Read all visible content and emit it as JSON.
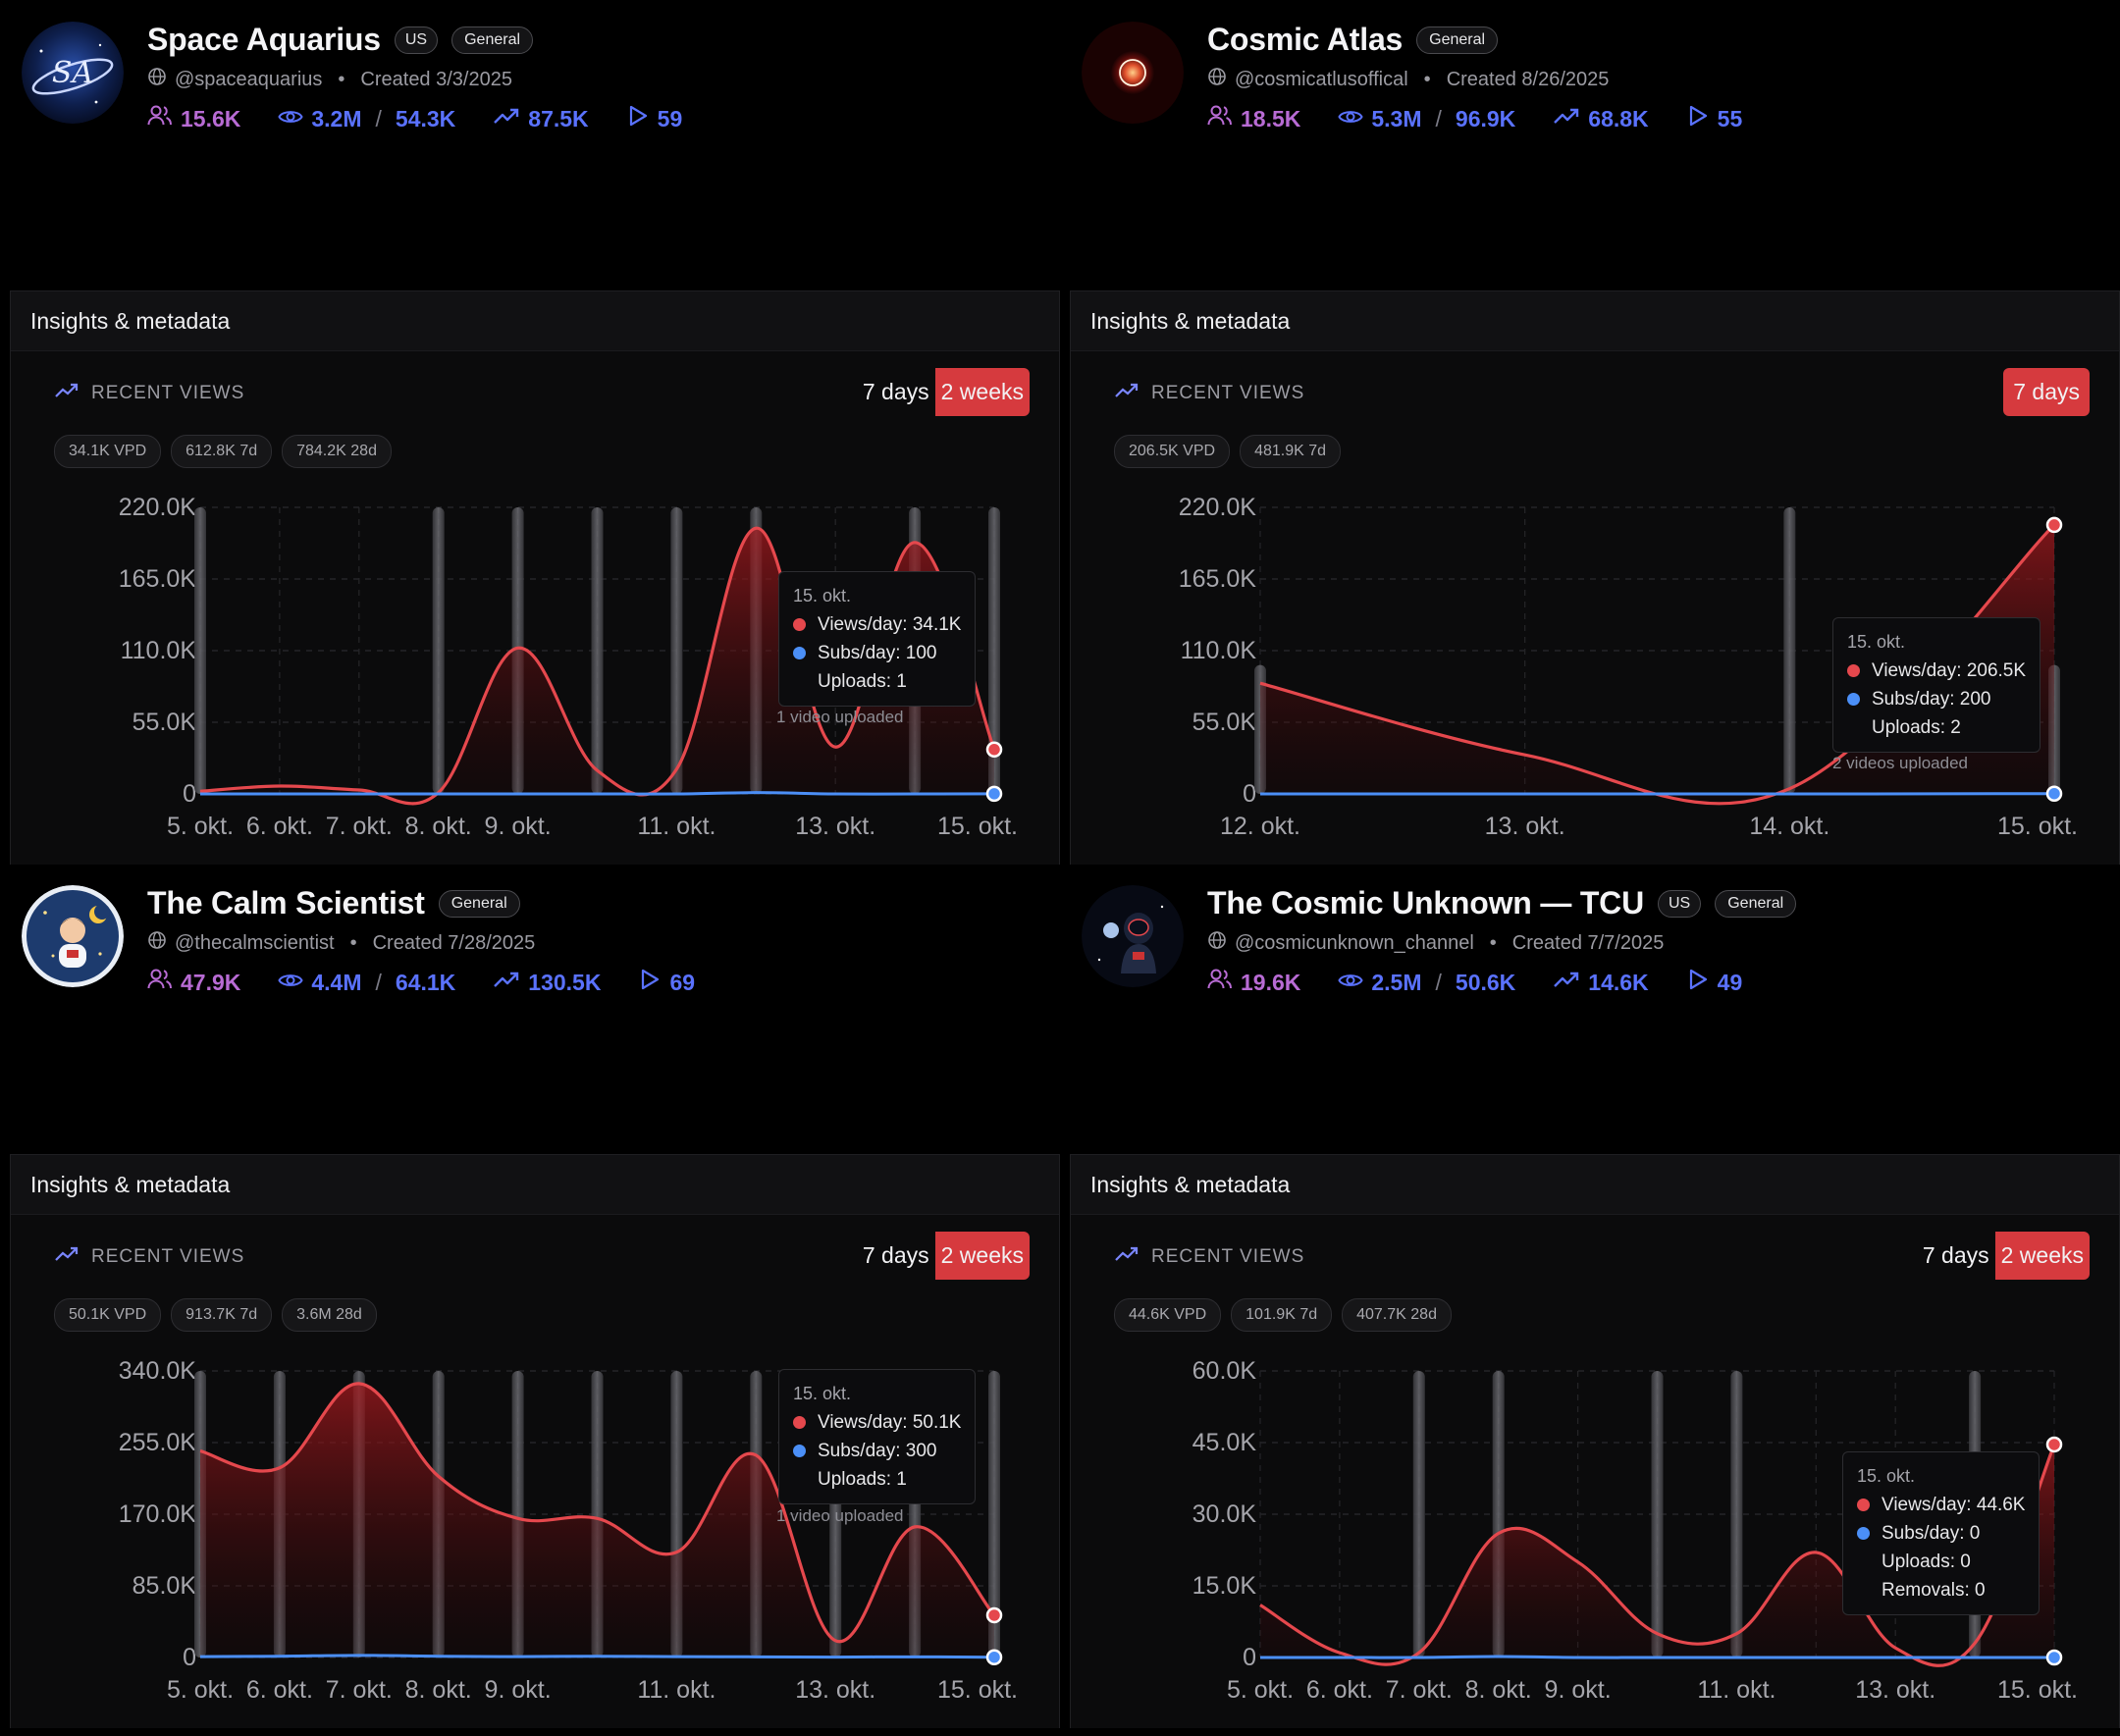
{
  "colors": {
    "views": "#e5484d",
    "subs": "#4b8ff7",
    "accent": "#d63a3e",
    "purple": "#b86bd4",
    "blue": "#5a72ff"
  },
  "labels": {
    "panel_title": "Insights & metadata",
    "recent_views": "RECENT VIEWS",
    "range_7": "7 days",
    "range_14": "2 weeks",
    "views_prefix": "Views/day: ",
    "subs_prefix": "Subs/day: ",
    "uploads_prefix": "Uploads: ",
    "removals_prefix": "Removals: "
  },
  "channels": [
    {
      "name": "Space Aquarius",
      "badges": [
        "US",
        "General"
      ],
      "handle": "@spaceaquarius",
      "created": "Created 3/3/2025",
      "subscribers": "15.6K",
      "views_total": "3.2M",
      "views_avg": "54.3K",
      "trend": "87.5K",
      "videos": "59",
      "avatar": "galaxy-logo",
      "chips": [
        "34.1K VPD",
        "612.8K 7d",
        "784.2K 28d"
      ],
      "active_range": "2 weeks",
      "ranges": [
        "7 days",
        "2 weeks"
      ],
      "tooltip": {
        "date": "15. okt.",
        "views": "34.1K",
        "subs": "100",
        "uploads": "1"
      },
      "uploaded_note": "1 video uploaded",
      "chart_data": {
        "type": "area",
        "x_labels": [
          "5. okt.",
          "6. okt.",
          "7. okt.",
          "8. okt.",
          "9. okt.",
          "",
          "11. okt.",
          "",
          "13. okt.",
          "",
          "15. okt."
        ],
        "x": [
          "5. okt.",
          "6. okt.",
          "7. okt.",
          "8. okt.",
          "9. okt.",
          "10. okt.",
          "11. okt.",
          "12. okt.",
          "13. okt.",
          "14. okt.",
          "15. okt."
        ],
        "y_ticks": [
          "0",
          "55.0K",
          "110.0K",
          "165.0K",
          "220.0K"
        ],
        "ylim": [
          0,
          220000
        ],
        "series": [
          {
            "name": "Views/day",
            "values": [
              2000,
              6000,
              3000,
              1000,
              112000,
              18000,
              19000,
              204000,
              36000,
              193000,
              34100
            ]
          },
          {
            "name": "Subs/day",
            "values": [
              0,
              0,
              0,
              0,
              0,
              0,
              0,
              1000,
              0,
              0,
              100
            ]
          }
        ],
        "upload_days": [
          0,
          3,
          4,
          5,
          6,
          7,
          9,
          10
        ]
      }
    },
    {
      "name": "Cosmic Atlas",
      "badges": [
        "General"
      ],
      "handle": "@cosmicatlusoffical",
      "created": "Created 8/26/2025",
      "subscribers": "18.5K",
      "views_total": "5.3M",
      "views_avg": "96.9K",
      "trend": "68.8K",
      "videos": "55",
      "avatar": "red-planet-logo",
      "chips": [
        "206.5K VPD",
        "481.9K 7d"
      ],
      "active_range": "7 days",
      "ranges": [
        "7 days"
      ],
      "tooltip": {
        "date": "15. okt.",
        "views": "206.5K",
        "subs": "200",
        "uploads": "2"
      },
      "uploaded_note": "2 videos uploaded",
      "chart_data": {
        "type": "area",
        "x_labels": [
          "12. okt.",
          "13. okt.",
          "14. okt.",
          "15. okt."
        ],
        "x": [
          "12. okt.",
          "13. okt.",
          "14. okt.",
          "15. okt."
        ],
        "y_ticks": [
          "0",
          "55.0K",
          "110.0K",
          "165.0K",
          "220.0K"
        ],
        "ylim": [
          0,
          220000
        ],
        "series": [
          {
            "name": "Views/day",
            "values": [
              85000,
              30000,
              4000,
              206500
            ]
          },
          {
            "name": "Subs/day",
            "values": [
              0,
              0,
              0,
              200
            ]
          }
        ],
        "upload_days": [
          0,
          2,
          3
        ]
      }
    },
    {
      "name": "The Calm Scientist",
      "badges": [
        "General"
      ],
      "handle": "@thecalmscientist",
      "created": "Created 7/28/2025",
      "subscribers": "47.9K",
      "views_total": "4.4M",
      "views_avg": "64.1K",
      "trend": "130.5K",
      "videos": "69",
      "avatar": "scientist-logo",
      "chips": [
        "50.1K VPD",
        "913.7K 7d",
        "3.6M 28d"
      ],
      "active_range": "2 weeks",
      "ranges": [
        "7 days",
        "2 weeks"
      ],
      "tooltip": {
        "date": "15. okt.",
        "views": "50.1K",
        "subs": "300",
        "uploads": "1"
      },
      "uploaded_note": "1 video uploaded",
      "chart_data": {
        "type": "area",
        "x_labels": [
          "5. okt.",
          "6. okt.",
          "7. okt.",
          "8. okt.",
          "9. okt.",
          "",
          "11. okt.",
          "",
          "13. okt.",
          "",
          "15. okt."
        ],
        "x": [
          "5. okt.",
          "6. okt.",
          "7. okt.",
          "8. okt.",
          "9. okt.",
          "10. okt.",
          "11. okt.",
          "12. okt.",
          "13. okt.",
          "14. okt.",
          "15. okt."
        ],
        "y_ticks": [
          "0",
          "85.0K",
          "170.0K",
          "255.0K",
          "340.0K"
        ],
        "ylim": [
          0,
          340000
        ],
        "series": [
          {
            "name": "Views/day",
            "values": [
              245000,
              225000,
              325000,
              215000,
              165000,
              165000,
              125000,
              240000,
              20000,
              155000,
              50100
            ]
          },
          {
            "name": "Subs/day",
            "values": [
              1000,
              1500,
              2500,
              1500,
              1000,
              1500,
              1000,
              800,
              500,
              800,
              300
            ]
          }
        ],
        "upload_days": [
          0,
          1,
          2,
          3,
          4,
          5,
          6,
          7,
          8,
          9,
          10
        ]
      }
    },
    {
      "name": "The Cosmic Unknown — TCU",
      "badges": [
        "US",
        "General"
      ],
      "handle": "@cosmicunknown_channel",
      "created": "Created 7/7/2025",
      "subscribers": "19.6K",
      "views_total": "2.5M",
      "views_avg": "50.6K",
      "trend": "14.6K",
      "videos": "49",
      "avatar": "astronaut-logo",
      "chips": [
        "44.6K VPD",
        "101.9K 7d",
        "407.7K 28d"
      ],
      "active_range": "2 weeks",
      "ranges": [
        "7 days",
        "2 weeks"
      ],
      "tooltip": {
        "date": "15. okt.",
        "views": "44.6K",
        "subs": "0",
        "uploads": "0",
        "removals": "0"
      },
      "uploaded_note": "",
      "chart_data": {
        "type": "area",
        "x_labels": [
          "5. okt.",
          "6. okt.",
          "7. okt.",
          "8. okt.",
          "9. okt.",
          "",
          "11. okt.",
          "",
          "13. okt.",
          "",
          "15. okt."
        ],
        "x": [
          "5. okt.",
          "6. okt.",
          "7. okt.",
          "8. okt.",
          "9. okt.",
          "10. okt.",
          "11. okt.",
          "12. okt.",
          "13. okt.",
          "14. okt.",
          "15. okt."
        ],
        "y_ticks": [
          "0",
          "15.0K",
          "30.0K",
          "45.0K",
          "60.0K"
        ],
        "ylim": [
          0,
          60000
        ],
        "series": [
          {
            "name": "Views/day",
            "values": [
              11000,
              1000,
              1000,
              26000,
              20000,
              5000,
              5000,
              22000,
              2000,
              3000,
              44600
            ]
          },
          {
            "name": "Subs/day",
            "values": [
              0,
              0,
              0,
              200,
              0,
              0,
              0,
              0,
              0,
              0,
              0
            ]
          }
        ],
        "upload_days": [
          2,
          3,
          5,
          6,
          9
        ]
      }
    }
  ]
}
